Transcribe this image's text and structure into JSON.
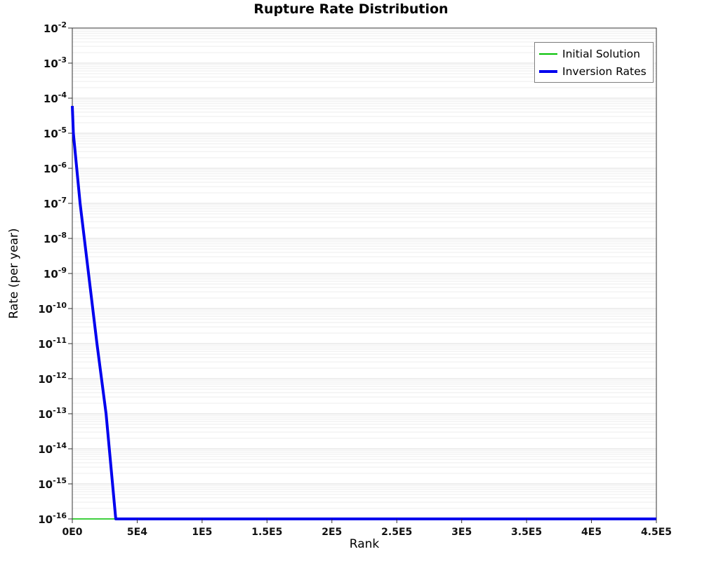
{
  "chart_data": {
    "type": "line",
    "title": "Rupture Rate Distribution",
    "xlabel": "Rank",
    "ylabel": "Rate (per year)",
    "x_axis": {
      "min": 0,
      "max": 450000,
      "ticks": [
        {
          "value": 0,
          "label": "0E0"
        },
        {
          "value": 50000,
          "label": "5E4"
        },
        {
          "value": 100000,
          "label": "1E5"
        },
        {
          "value": 150000,
          "label": "1.5E5"
        },
        {
          "value": 200000,
          "label": "2E5"
        },
        {
          "value": 250000,
          "label": "2.5E5"
        },
        {
          "value": 300000,
          "label": "3E5"
        },
        {
          "value": 350000,
          "label": "3.5E5"
        },
        {
          "value": 400000,
          "label": "4E5"
        },
        {
          "value": 450000,
          "label": "4.5E5"
        }
      ]
    },
    "y_axis": {
      "scale": "log",
      "max_exp": -2,
      "min_exp": -16,
      "tick_base": "10",
      "tick_exps": [
        -2,
        -3,
        -4,
        -5,
        -6,
        -7,
        -8,
        -9,
        -10,
        -11,
        -12,
        -13,
        -14,
        -15,
        -16
      ]
    },
    "grid": {
      "show": true,
      "major_color": "#dcdcdc",
      "minor_color": "#ededed"
    },
    "axis_color": "#333333",
    "tick_label_color": "#111111",
    "legend": {
      "position": "top-right",
      "border_color": "#808080",
      "background": "#ffffff"
    },
    "series": [
      {
        "name": "Initial Solution",
        "color": "#00c000",
        "stroke_width": 1.5,
        "points": [
          [
            0,
            1e-16
          ],
          [
            450000,
            1e-16
          ]
        ]
      },
      {
        "name": "Inversion Rates",
        "color": "#0000ee",
        "stroke_width": 4,
        "points": [
          [
            0,
            6e-05
          ],
          [
            800,
            1e-05
          ],
          [
            6000,
            1e-07
          ],
          [
            12500,
            1e-09
          ],
          [
            19000,
            1e-11
          ],
          [
            26000,
            1e-13
          ],
          [
            33500,
            1e-16
          ],
          [
            450000,
            1e-16
          ]
        ]
      }
    ]
  }
}
